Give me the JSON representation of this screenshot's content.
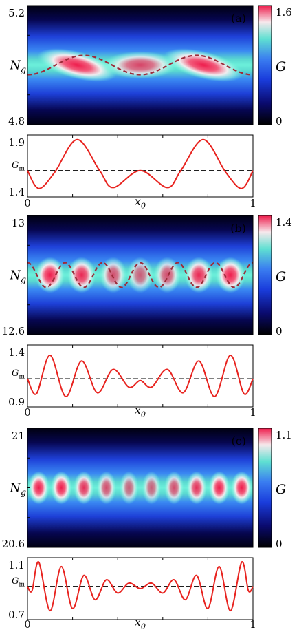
{
  "figure": {
    "panels": [
      {
        "label": "(a)",
        "heatmap": {
          "type": "heatmap",
          "ylabel": "N_g",
          "yticks": [
            "5.2",
            "4.8"
          ],
          "colorbar": {
            "label": "G",
            "ticks": [
              "1.6",
              "0"
            ],
            "max": 1.6,
            "min": 0
          },
          "center_Ng": 5.0,
          "lobes": [
            {
              "x0": 0.22,
              "strength": 1.55
            },
            {
              "x0": 0.5,
              "strength": 1.15
            },
            {
              "x0": 0.78,
              "strength": 1.55
            }
          ],
          "dashed_curve_periods": 2
        },
        "lineplot": {
          "type": "line",
          "xlabel": "x_0",
          "xticks": [
            "0",
            "1"
          ],
          "yticks": [
            "1.9",
            "1.4"
          ],
          "hline_label": "G_m",
          "ylim": [
            1.32,
            1.98
          ],
          "hline": 1.6,
          "harmonic": 2,
          "points": [
            [
              0.0,
              1.6
            ],
            [
              0.05,
              1.41
            ],
            [
              0.12,
              1.58
            ],
            [
              0.22,
              1.93
            ],
            [
              0.32,
              1.6
            ],
            [
              0.38,
              1.42
            ],
            [
              0.5,
              1.6
            ],
            [
              0.62,
              1.42
            ],
            [
              0.68,
              1.6
            ],
            [
              0.78,
              1.93
            ],
            [
              0.88,
              1.58
            ],
            [
              0.95,
              1.41
            ],
            [
              1.0,
              1.6
            ]
          ]
        }
      },
      {
        "label": "(b)",
        "heatmap": {
          "type": "heatmap",
          "ylabel": "N_g",
          "yticks": [
            "13",
            "12.6"
          ],
          "colorbar": {
            "label": "G",
            "ticks": [
              "1.4",
              "0"
            ],
            "max": 1.4,
            "min": 0
          },
          "center_Ng": 12.8,
          "lobes": [
            {
              "x0": 0.1,
              "strength": 1.35
            },
            {
              "x0": 0.24,
              "strength": 1.2
            },
            {
              "x0": 0.38,
              "strength": 0.95
            },
            {
              "x0": 0.5,
              "strength": 0.85
            },
            {
              "x0": 0.62,
              "strength": 0.95
            },
            {
              "x0": 0.76,
              "strength": 1.2
            },
            {
              "x0": 0.9,
              "strength": 1.35
            }
          ],
          "dashed_curve_periods": 6
        },
        "lineplot": {
          "type": "line",
          "xlabel": "x_0",
          "xticks": [
            "0",
            "1"
          ],
          "yticks": [
            "1.4",
            "0.9"
          ],
          "hline_label": "G_m",
          "ylim": [
            0.82,
            1.48
          ],
          "hline": 1.12,
          "harmonic": 6,
          "points": [
            [
              0.0,
              1.12
            ],
            [
              0.04,
              0.96
            ],
            [
              0.1,
              1.37
            ],
            [
              0.17,
              0.93
            ],
            [
              0.24,
              1.31
            ],
            [
              0.31,
              0.97
            ],
            [
              0.38,
              1.22
            ],
            [
              0.45,
              1.03
            ],
            [
              0.5,
              1.1
            ],
            [
              0.55,
              1.03
            ],
            [
              0.62,
              1.22
            ],
            [
              0.69,
              0.97
            ],
            [
              0.76,
              1.31
            ],
            [
              0.83,
              0.93
            ],
            [
              0.9,
              1.37
            ],
            [
              0.96,
              0.96
            ],
            [
              1.0,
              1.12
            ]
          ]
        }
      },
      {
        "label": "(c)",
        "heatmap": {
          "type": "heatmap",
          "ylabel": "N_g",
          "yticks": [
            "21",
            "20.6"
          ],
          "colorbar": {
            "label": "G",
            "ticks": [
              "1.1",
              "0"
            ],
            "max": 1.1,
            "min": 0
          },
          "center_Ng": 20.8,
          "lobes": [
            {
              "x0": 0.05,
              "strength": 1.05
            },
            {
              "x0": 0.15,
              "strength": 1.0
            },
            {
              "x0": 0.25,
              "strength": 0.9
            },
            {
              "x0": 0.35,
              "strength": 0.75
            },
            {
              "x0": 0.45,
              "strength": 0.65
            },
            {
              "x0": 0.55,
              "strength": 0.65
            },
            {
              "x0": 0.65,
              "strength": 0.75
            },
            {
              "x0": 0.75,
              "strength": 0.9
            },
            {
              "x0": 0.85,
              "strength": 1.0
            },
            {
              "x0": 0.95,
              "strength": 1.05
            }
          ],
          "dashed_curve_periods": 0
        },
        "lineplot": {
          "type": "line",
          "xlabel": "x_0",
          "xticks": [
            "0",
            "1"
          ],
          "yticks": [
            "1.1",
            "0.7"
          ],
          "hline_label": "G_m",
          "ylim": [
            0.62,
            1.18
          ],
          "hline": 0.92,
          "harmonic": 10,
          "points": [
            [
              0.0,
              0.92
            ],
            [
              0.02,
              0.88
            ],
            [
              0.05,
              1.14
            ],
            [
              0.1,
              0.7
            ],
            [
              0.15,
              1.1
            ],
            [
              0.2,
              0.72
            ],
            [
              0.25,
              1.02
            ],
            [
              0.3,
              0.8
            ],
            [
              0.35,
              0.98
            ],
            [
              0.4,
              0.86
            ],
            [
              0.45,
              0.95
            ],
            [
              0.5,
              0.9
            ],
            [
              0.55,
              0.95
            ],
            [
              0.6,
              0.86
            ],
            [
              0.65,
              0.98
            ],
            [
              0.7,
              0.8
            ],
            [
              0.75,
              1.02
            ],
            [
              0.8,
              0.72
            ],
            [
              0.85,
              1.1
            ],
            [
              0.9,
              0.7
            ],
            [
              0.95,
              1.14
            ],
            [
              0.98,
              0.88
            ],
            [
              1.0,
              0.92
            ]
          ]
        }
      }
    ]
  },
  "chart_data": [
    {
      "type": "heatmap",
      "panel": "(a)",
      "x_range": [
        0,
        1
      ],
      "y_range": [
        4.8,
        5.2
      ],
      "ylabel": "N_g",
      "colorbar_label": "G",
      "colorbar_range": [
        0,
        1.6
      ]
    },
    {
      "type": "line",
      "panel": "(a)",
      "xlabel": "x_0",
      "ylim": [
        1.4,
        1.9
      ],
      "hline": {
        "label": "G_m",
        "value": 1.6
      },
      "x": [
        0.0,
        0.05,
        0.12,
        0.22,
        0.32,
        0.38,
        0.5,
        0.62,
        0.68,
        0.78,
        0.88,
        0.95,
        1.0
      ],
      "values": [
        1.6,
        1.41,
        1.58,
        1.93,
        1.6,
        1.42,
        1.6,
        1.42,
        1.6,
        1.93,
        1.58,
        1.41,
        1.6
      ]
    },
    {
      "type": "heatmap",
      "panel": "(b)",
      "x_range": [
        0,
        1
      ],
      "y_range": [
        12.6,
        13
      ],
      "ylabel": "N_g",
      "colorbar_label": "G",
      "colorbar_range": [
        0,
        1.4
      ]
    },
    {
      "type": "line",
      "panel": "(b)",
      "xlabel": "x_0",
      "ylim": [
        0.9,
        1.4
      ],
      "hline": {
        "label": "G_m",
        "value": 1.12
      },
      "x": [
        0.0,
        0.04,
        0.1,
        0.17,
        0.24,
        0.31,
        0.38,
        0.45,
        0.5,
        0.55,
        0.62,
        0.69,
        0.76,
        0.83,
        0.9,
        0.96,
        1.0
      ],
      "values": [
        1.12,
        0.96,
        1.37,
        0.93,
        1.31,
        0.97,
        1.22,
        1.03,
        1.1,
        1.03,
        1.22,
        0.97,
        1.31,
        0.93,
        1.37,
        0.96,
        1.12
      ]
    },
    {
      "type": "heatmap",
      "panel": "(c)",
      "x_range": [
        0,
        1
      ],
      "y_range": [
        20.6,
        21
      ],
      "ylabel": "N_g",
      "colorbar_label": "G",
      "colorbar_range": [
        0,
        1.1
      ]
    },
    {
      "type": "line",
      "panel": "(c)",
      "xlabel": "x_0",
      "ylim": [
        0.7,
        1.1
      ],
      "hline": {
        "label": "G_m",
        "value": 0.92
      },
      "x": [
        0.0,
        0.02,
        0.05,
        0.1,
        0.15,
        0.2,
        0.25,
        0.3,
        0.35,
        0.4,
        0.45,
        0.5,
        0.55,
        0.6,
        0.65,
        0.7,
        0.75,
        0.8,
        0.85,
        0.9,
        0.95,
        0.98,
        1.0
      ],
      "values": [
        0.92,
        0.88,
        1.14,
        0.7,
        1.1,
        0.72,
        1.02,
        0.8,
        0.98,
        0.86,
        0.95,
        0.9,
        0.95,
        0.86,
        0.98,
        0.8,
        1.02,
        0.72,
        1.1,
        0.7,
        1.14,
        0.88,
        0.92
      ]
    }
  ]
}
